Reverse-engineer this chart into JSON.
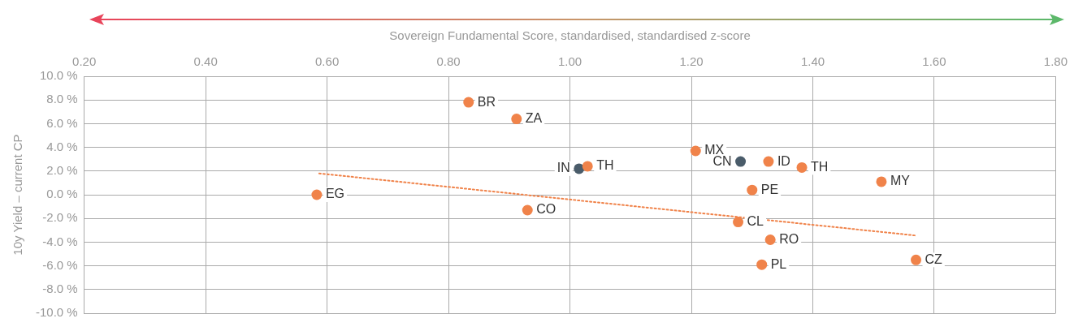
{
  "chart_data": {
    "type": "scatter",
    "xlabel": "Sovereign Fundamental Score, standardised, standardised z-score",
    "ylabel": "10y Yield – current CP",
    "xlim": [
      0.2,
      1.8
    ],
    "xticks": [
      {
        "value": 0.2,
        "label": "0.20"
      },
      {
        "value": 0.4,
        "label": "0.40"
      },
      {
        "value": 0.6,
        "label": "0.60"
      },
      {
        "value": 0.8,
        "label": "0.80"
      },
      {
        "value": 1.0,
        "label": "1.00"
      },
      {
        "value": 1.2,
        "label": "1.20"
      },
      {
        "value": 1.4,
        "label": "1.40"
      },
      {
        "value": 1.6,
        "label": "1.60"
      },
      {
        "value": 1.8,
        "label": "1.80"
      }
    ],
    "ylim": [
      -10,
      10
    ],
    "yticks": [
      {
        "value": -10,
        "label": "-10.0 %"
      },
      {
        "value": -8,
        "label": "-8.0 %"
      },
      {
        "value": -6,
        "label": "-6.0 %"
      },
      {
        "value": -4,
        "label": "-4.0 %"
      },
      {
        "value": -2,
        "label": "-2.0 %"
      },
      {
        "value": 0,
        "label": "0.0 %"
      },
      {
        "value": 2,
        "label": "2.0 %"
      },
      {
        "value": 4,
        "label": "4.0 %"
      },
      {
        "value": 6,
        "label": "6.0 %"
      },
      {
        "value": 8,
        "label": "8.0 %"
      },
      {
        "value": 10,
        "label": "10.0 %"
      }
    ],
    "grid": true,
    "legend": false,
    "marker": "circle",
    "series": [
      {
        "color": "#f0834a",
        "x": [
          0.833,
          0.912,
          1.207,
          1.327,
          1.382,
          1.029,
          1.513,
          1.3,
          0.583,
          0.93,
          1.277,
          1.33,
          1.316,
          1.57
        ],
        "values": [
          7.8,
          6.4,
          3.7,
          2.8,
          2.3,
          2.4,
          1.1,
          0.4,
          0.0,
          -1.3,
          -2.3,
          -3.8,
          -5.9,
          -5.5
        ]
      },
      {
        "color": "#4a5c6a",
        "x": [
          1.281,
          1.015
        ],
        "values": [
          2.8,
          2.2
        ]
      },
      {
        "type": "line",
        "color": "#f0834a",
        "line_style": "dotted",
        "marker": "none",
        "x": [
          0.587,
          1.571
        ],
        "values": [
          1.8,
          -3.45
        ]
      }
    ],
    "annotations": [
      {
        "text": "BR",
        "x": 0.833,
        "y": 7.8
      },
      {
        "text": "ZA",
        "x": 0.912,
        "y": 6.4
      },
      {
        "text": "MX",
        "x": 1.207,
        "y": 3.7
      },
      {
        "text": "ID",
        "x": 1.327,
        "y": 2.8
      },
      {
        "text": "TH",
        "x": 1.382,
        "y": 2.3
      },
      {
        "text": "TH",
        "x": 1.029,
        "y": 2.4
      },
      {
        "text": "MY",
        "x": 1.513,
        "y": 1.1
      },
      {
        "text": "PE",
        "x": 1.3,
        "y": 0.4
      },
      {
        "text": "EG",
        "x": 0.583,
        "y": 0.0
      },
      {
        "text": "CO",
        "x": 0.93,
        "y": -1.3
      },
      {
        "text": "CL",
        "x": 1.277,
        "y": -2.3
      },
      {
        "text": "RO",
        "x": 1.33,
        "y": -3.8
      },
      {
        "text": "PL",
        "x": 1.316,
        "y": -5.9
      },
      {
        "text": "CZ",
        "x": 1.57,
        "y": -5.5
      },
      {
        "text": "CN",
        "x": 1.281,
        "y": 2.8
      },
      {
        "text": "IN",
        "x": 1.015,
        "y": 2.2
      }
    ]
  }
}
